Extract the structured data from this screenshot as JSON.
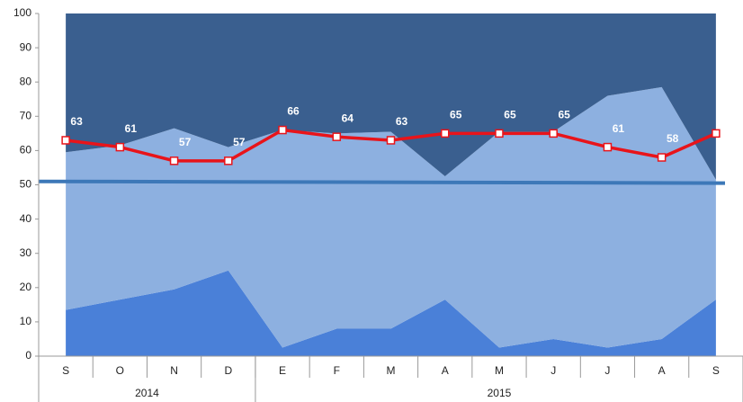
{
  "chart_data": {
    "type": "area",
    "stacked": true,
    "categories": [
      "S",
      "O",
      "N",
      "D",
      "E",
      "F",
      "M",
      "A",
      "M",
      "J",
      "J",
      "A",
      "S"
    ],
    "groups": [
      {
        "label": "2014",
        "span": 4
      },
      {
        "label": "2015",
        "span": 9
      }
    ],
    "series": [
      {
        "type": "area",
        "color": "#4a80d8",
        "values": [
          13.5,
          16.5,
          19.5,
          25,
          2.5,
          8,
          8,
          16.5,
          2.5,
          5,
          2.5,
          5,
          16.5
        ]
      },
      {
        "type": "area",
        "color": "#8db0e0",
        "values": [
          46,
          45,
          47,
          36,
          63.5,
          57,
          57.5,
          36,
          63,
          60.5,
          73.5,
          73.5,
          35
        ]
      },
      {
        "type": "area",
        "color": "#3a5f8f",
        "values": [
          40.5,
          38.5,
          33.5,
          39,
          34,
          35,
          34.5,
          47.5,
          34.5,
          34.5,
          24,
          21.5,
          48.5
        ]
      },
      {
        "type": "line",
        "color": "#e8141a",
        "values": [
          63,
          61,
          57,
          57,
          66,
          64,
          63,
          65,
          65,
          65,
          61,
          58,
          65
        ]
      }
    ],
    "reference_line": {
      "from": 51,
      "to": 50.5,
      "color": "#3d78b8"
    },
    "ylim": [
      0,
      100
    ],
    "yticks": [
      0,
      10,
      20,
      30,
      40,
      50,
      60,
      70,
      80,
      90,
      100
    ],
    "grid": false
  }
}
